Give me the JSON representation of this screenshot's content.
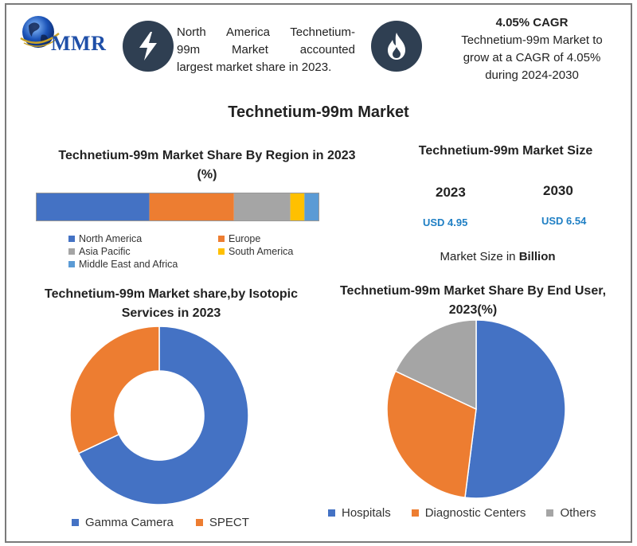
{
  "brand": {
    "logo_text": "MMR"
  },
  "facts": {
    "fact1_lines": [
      [
        "North",
        "America",
        "Technetium-"
      ],
      [
        "99m",
        "Market",
        "accounted"
      ],
      [
        "largest market share in 2023."
      ]
    ],
    "fact2_heading": "4.05% CAGR",
    "fact2_lines": [
      "Technetium-99m Market to",
      "grow at a CAGR of 4.05%",
      "during 2024-2030"
    ]
  },
  "main_title": "Technetium-99m Market",
  "colors": {
    "blue": "#4472c4",
    "orange": "#ed7d31",
    "gray": "#a5a5a5",
    "yellow": "#ffc000",
    "lightblue": "#5b9bd5",
    "badge": "#2f3f52",
    "usd": "#1f7fc4"
  },
  "icons": {
    "fact1": "lightning-icon",
    "fact2": "flame-icon",
    "logo": "globe-icon"
  },
  "chart_data": [
    {
      "type": "bar",
      "orientation": "horizontal-stacked-100",
      "title": "Technetium-99m Market Share By Region in 2023 (%)",
      "series": [
        {
          "name": "North America",
          "value": 40,
          "color": "#4472c4"
        },
        {
          "name": "Europe",
          "value": 30,
          "color": "#ed7d31"
        },
        {
          "name": "Asia Pacific",
          "value": 20,
          "color": "#a5a5a5"
        },
        {
          "name": "South America",
          "value": 5,
          "color": "#ffc000"
        },
        {
          "name": "Middle East and Africa",
          "value": 5,
          "color": "#5b9bd5"
        }
      ],
      "legend": "bottom"
    },
    {
      "type": "table",
      "title": "Technetium-99m Market Size",
      "columns": [
        "2023",
        "2030"
      ],
      "values": [
        "USD 4.95",
        "USD 6.54"
      ],
      "note_prefix": "Market Size in ",
      "note_bold": "Billion"
    },
    {
      "type": "pie",
      "variant": "donut",
      "title": "Technetium-99m Market share,by Isotopic Services  in 2023",
      "series": [
        {
          "name": "Gamma Camera",
          "value": 68,
          "color": "#4472c4"
        },
        {
          "name": "SPECT",
          "value": 32,
          "color": "#ed7d31"
        }
      ],
      "legend": "bottom"
    },
    {
      "type": "pie",
      "title": "Technetium-99m Market Share By End User, 2023(%)",
      "series": [
        {
          "name": "Hospitals",
          "value": 52,
          "color": "#4472c4"
        },
        {
          "name": "Diagnostic Centers",
          "value": 30,
          "color": "#ed7d31"
        },
        {
          "name": "Others",
          "value": 18,
          "color": "#a5a5a5"
        }
      ],
      "legend": "bottom"
    }
  ]
}
